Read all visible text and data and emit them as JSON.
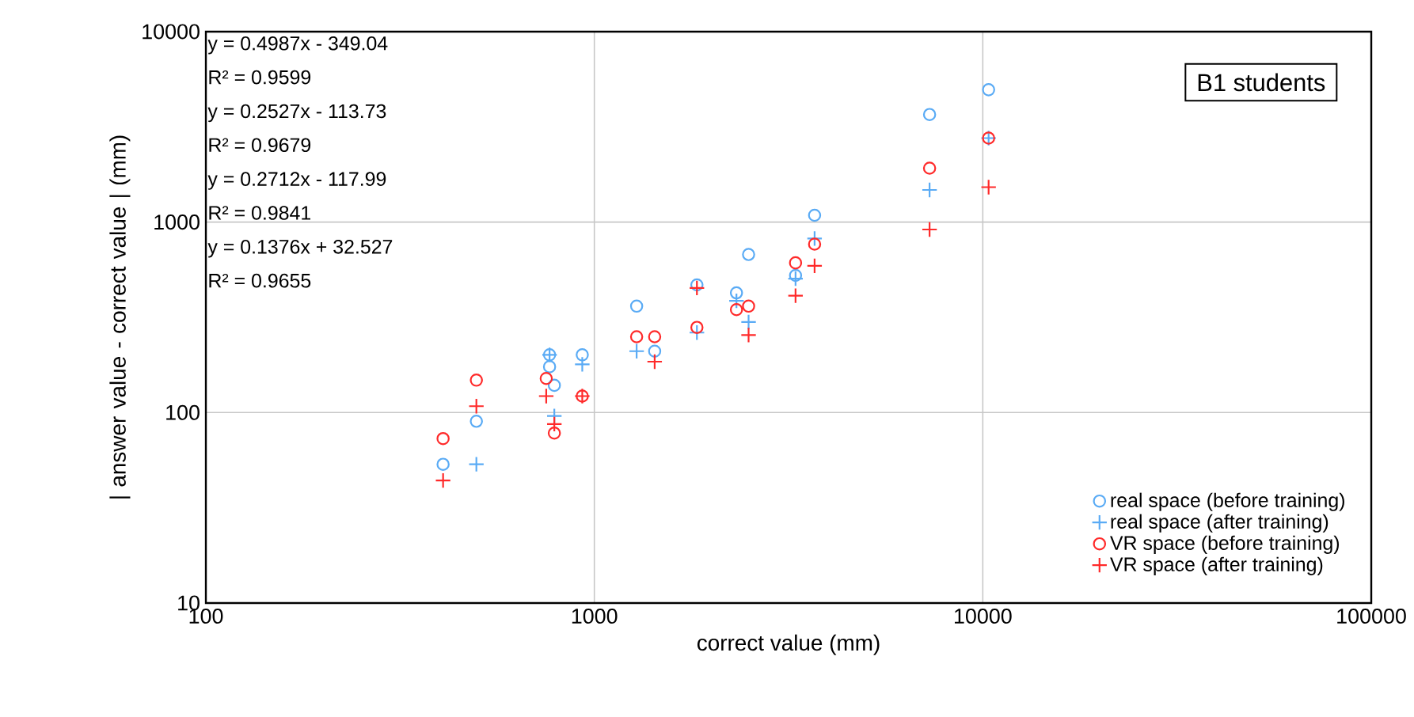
{
  "chart_data": {
    "type": "scatter",
    "title": "B1 students",
    "xlabel": "correct value (mm)",
    "ylabel": "| answer value - correct value | (mm)",
    "log": "xy",
    "grid": true,
    "legend": "bottom right",
    "xlim": [
      100,
      100000
    ],
    "xticks": [
      100,
      1000,
      10000,
      100000
    ],
    "ylim": [
      10,
      10000
    ],
    "yticks": [
      10,
      100,
      1000,
      10000
    ],
    "annotations": [
      "y = 0.4987x - 349.04",
      "R² = 0.9599",
      "y = 0.2527x - 113.73",
      "R² = 0.9679",
      "y = 0.2712x - 117.99",
      "R² = 0.9841",
      "y = 0.1376x + 32.527",
      "R² = 0.9655"
    ],
    "series": [
      {
        "name": "real space (before training)",
        "color": "#5aabf5",
        "marker": "circle",
        "x": [
          408,
          497,
          767,
          767,
          789,
          931,
          1285,
          1430,
          1837,
          2322,
          2495,
          3296,
          3690,
          7295,
          10350
        ],
        "values": [
          53.5,
          90,
          201,
          174,
          139,
          201,
          362,
          210,
          468,
          425,
          676,
          525,
          1086,
          3672,
          4955
        ]
      },
      {
        "name": "real space (after training)",
        "color": "#5aabf5",
        "marker": "cross",
        "x": [
          497,
          767,
          789,
          931,
          1285,
          1837,
          2322,
          2495,
          3296,
          3690,
          7295,
          10350
        ],
        "values": [
          53.5,
          201,
          96,
          179,
          210,
          263,
          386,
          299,
          505,
          820,
          1475,
          2760
        ]
      },
      {
        "name": "VR space (before training)",
        "color": "#ff2a2a",
        "marker": "circle",
        "x": [
          408,
          497,
          752,
          789,
          931,
          1285,
          1430,
          1837,
          2322,
          2495,
          3296,
          3690,
          7295,
          10350
        ],
        "values": [
          73,
          148,
          151,
          78,
          122,
          250,
          250,
          280,
          347,
          362,
          611,
          766,
          1919,
          2760
        ]
      },
      {
        "name": "VR space (after training)",
        "color": "#ff2a2a",
        "marker": "cross",
        "x": [
          408,
          497,
          752,
          789,
          931,
          1430,
          1837,
          2495,
          3296,
          3690,
          7295,
          10350
        ],
        "values": [
          44,
          108,
          122,
          87,
          122,
          185,
          451,
          255,
          411,
          589,
          914,
          1525
        ]
      }
    ]
  }
}
